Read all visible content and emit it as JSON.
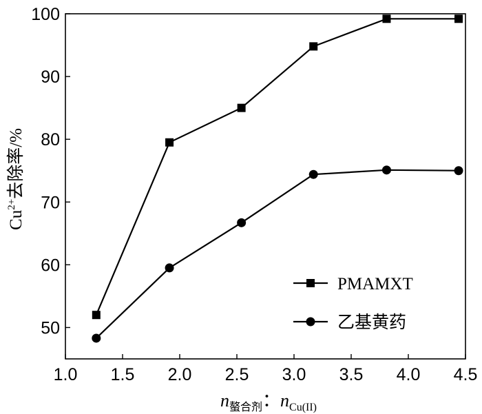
{
  "chart_data": {
    "type": "line",
    "title": "",
    "xlabel": {
      "main": "n",
      "sub1": "螯合剂",
      "sep": "：",
      "main2": "n",
      "sub2": "Cu(II)"
    },
    "ylabel": {
      "prefix": "Cu",
      "sup": "2+",
      "suffix": "去除率/%"
    },
    "xlim": [
      1.0,
      4.5
    ],
    "ylim": [
      45,
      100
    ],
    "xticks": [
      "1.0",
      "1.5",
      "2.0",
      "2.5",
      "3.0",
      "3.5",
      "4.0",
      "4.5"
    ],
    "yticks": [
      "50",
      "60",
      "70",
      "80",
      "90",
      "100"
    ],
    "grid": false,
    "legend_position": "bottom-right",
    "series": [
      {
        "name": "PMAMXT",
        "marker": "square",
        "x": [
          1.27,
          1.91,
          2.54,
          3.17,
          3.81,
          4.44
        ],
        "y": [
          52.0,
          79.5,
          85.0,
          94.8,
          99.2,
          99.2
        ]
      },
      {
        "name": "乙基黄药",
        "marker": "circle",
        "x": [
          1.27,
          1.91,
          2.54,
          3.17,
          3.81,
          4.44
        ],
        "y": [
          48.3,
          59.5,
          66.7,
          74.4,
          75.1,
          75.0
        ]
      }
    ]
  }
}
